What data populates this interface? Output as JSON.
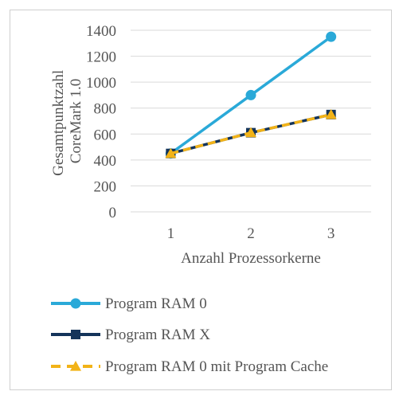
{
  "chart_data": {
    "type": "line",
    "x": [
      1,
      2,
      3
    ],
    "xlabel": "Anzahl Prozessorkerne",
    "ylabel": [
      "Gesamtpunktzahl",
      "CoreMark 1.0"
    ],
    "ylim": [
      0,
      1400
    ],
    "yticks": [
      0,
      200,
      400,
      600,
      800,
      1000,
      1200,
      1400
    ],
    "grid": true,
    "legend_position": "bottom",
    "series": [
      {
        "name": "Program RAM 0",
        "values": [
          450,
          900,
          1350
        ],
        "color": "#2aa9d8",
        "marker": "circle",
        "dash": false
      },
      {
        "name": "Program RAM X",
        "values": [
          450,
          610,
          750
        ],
        "color": "#14345a",
        "marker": "square",
        "dash": false
      },
      {
        "name": "Program RAM 0 mit Program Cache",
        "values": [
          450,
          610,
          750
        ],
        "color": "#f2b318",
        "marker": "triangle",
        "dash": true
      }
    ]
  }
}
